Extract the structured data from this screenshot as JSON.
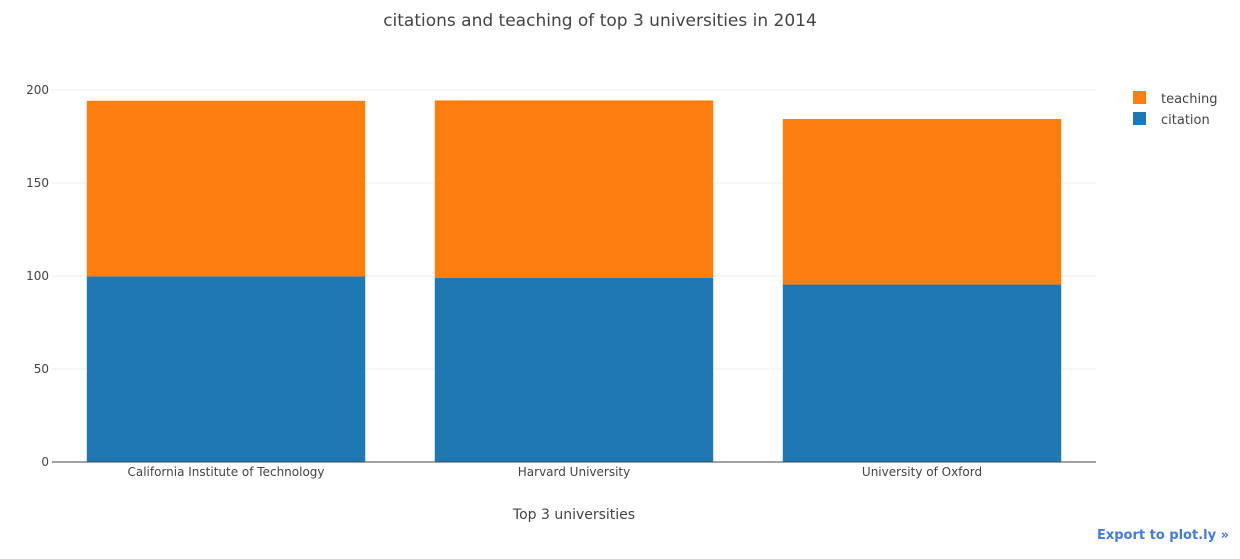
{
  "chart_data": {
    "type": "bar",
    "barmode": "stack",
    "title": "citations and teaching of top 3 universities in 2014",
    "xlabel": "Top 3 universities",
    "ylabel": "",
    "categories": [
      "California Institute of Technology",
      "Harvard University",
      "University of Oxford"
    ],
    "series": [
      {
        "name": "citation",
        "color": "#1f77b4",
        "values": [
          99.8,
          99.1,
          95.4
        ]
      },
      {
        "name": "teaching",
        "color": "#ff7f0e",
        "values": [
          94.4,
          95.3,
          89.0
        ]
      }
    ],
    "ylim": [
      0,
      200
    ],
    "yticks": [
      0,
      50,
      100,
      150,
      200
    ],
    "grid": true,
    "legend_position": "top-right",
    "legend_order": [
      "teaching",
      "citation"
    ]
  },
  "export_link": {
    "label": "Export to plot.ly »"
  }
}
